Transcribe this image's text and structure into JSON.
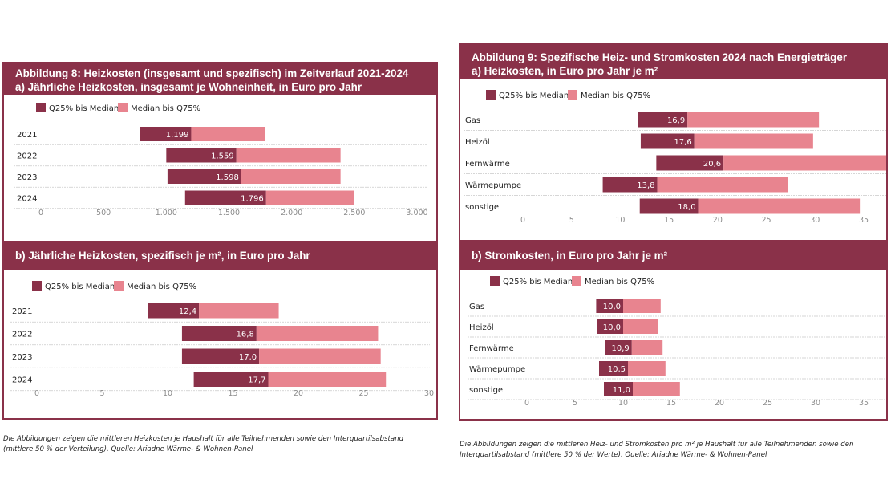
{
  "colors": {
    "dark": "#8a3149",
    "light": "#e8848f"
  },
  "legend": {
    "dark_label": "Q25% bis Median",
    "light_label": "Median bis Q75%"
  },
  "left": {
    "title_line1": "Abbildung 8: Heizkosten (insgesamt und spezifisch) im Zeitverlauf 2021-2024",
    "title_line2": "a) Jährliche Heizkosten, insgesamt je Wohneinheit, in Euro pro Jahr",
    "subtitle_b": "b) Jährliche Heizkosten, spezifisch je m², in Euro pro Jahr",
    "note_line1": "Die Abbildungen zeigen die mittleren Heizkosten je Haushalt für alle Teilnehmenden sowie den Interquartilsabstand",
    "note_line2": "(mittlere 50 % der Verteilung). Quelle: Ariadne Wärme- & Wohnen-Panel"
  },
  "right": {
    "title_line1": "Abbildung 9: Spezifische Heiz- und Stromkosten 2024 nach Energieträger",
    "title_line2": "a) Heizkosten, in Euro pro Jahr je m²",
    "subtitle_b": "b) Stromkosten, in Euro pro Jahr je m²",
    "note_line1": "Die Abbildungen zeigen die mittleren Heiz- und Stromkosten pro m² je Haushalt für alle Teilnehmenden sowie den",
    "note_line2": "Interquartilsabstand (mittlere 50 % der Werte). Quelle: Ariadne Wärme- & Wohnen-Panel"
  },
  "chart_data": [
    {
      "id": "8a",
      "type": "bar",
      "orientation": "horizontal",
      "stacked": "floating",
      "categories": [
        "2021",
        "2022",
        "2023",
        "2024"
      ],
      "q25": [
        790,
        1000,
        1010,
        1150
      ],
      "median": [
        1199,
        1559,
        1598,
        1796
      ],
      "q75": [
        1790,
        2390,
        2390,
        2500
      ],
      "labels": [
        "1.199",
        "1.559",
        "1.598",
        "1.796"
      ],
      "xlim": [
        0,
        3000
      ],
      "ticks": [
        0,
        500,
        1000,
        1500,
        2000,
        2500,
        3000
      ],
      "tick_labels": [
        "0",
        "500",
        "1.000",
        "1.500",
        "2.000",
        "2.500",
        "3.000"
      ]
    },
    {
      "id": "8b",
      "type": "bar",
      "orientation": "horizontal",
      "stacked": "floating",
      "categories": [
        "2021",
        "2022",
        "2023",
        "2024"
      ],
      "q25": [
        8.5,
        11.1,
        11.1,
        12.0
      ],
      "median": [
        12.4,
        16.8,
        17.0,
        17.7
      ],
      "q75": [
        18.5,
        26.1,
        26.3,
        26.7
      ],
      "labels": [
        "12,4",
        "16,8",
        "17,0",
        "17,7"
      ],
      "xlim": [
        0,
        30
      ],
      "ticks": [
        0,
        5,
        10,
        15,
        20,
        25,
        30
      ],
      "tick_labels": [
        "0",
        "5",
        "10",
        "15",
        "20",
        "25",
        "30"
      ]
    },
    {
      "id": "9a",
      "type": "bar",
      "orientation": "horizontal",
      "stacked": "floating",
      "categories": [
        "Gas",
        "Heizöl",
        "Fernwärme",
        "Wärmepumpe",
        "sonstige"
      ],
      "q25": [
        11.8,
        12.1,
        13.7,
        8.2,
        12.0
      ],
      "median": [
        16.9,
        17.6,
        20.6,
        13.8,
        18.0
      ],
      "q75": [
        30.4,
        29.8,
        39.5,
        27.2,
        34.6
      ],
      "labels": [
        "16,9",
        "17,6",
        "20,6",
        "13,8",
        "18,0"
      ],
      "xlim": [
        0,
        35
      ],
      "ticks": [
        0,
        5,
        10,
        15,
        20,
        25,
        30,
        35
      ],
      "tick_labels": [
        "0",
        "5",
        "10",
        "15",
        "20",
        "25",
        "30",
        "35"
      ]
    },
    {
      "id": "9b",
      "type": "bar",
      "orientation": "horizontal",
      "stacked": "floating",
      "categories": [
        "Gas",
        "Heizöl",
        "Fernwärme",
        "Wärmepumpe",
        "sonstige"
      ],
      "q25": [
        7.2,
        7.3,
        8.1,
        7.5,
        8.0
      ],
      "median": [
        10.0,
        10.0,
        10.9,
        10.5,
        11.0
      ],
      "q75": [
        13.9,
        13.6,
        14.1,
        14.4,
        15.9
      ],
      "labels": [
        "10,0",
        "10,0",
        "10,9",
        "10,5",
        "11,0"
      ],
      "xlim": [
        0,
        35
      ],
      "ticks": [
        0,
        5,
        10,
        15,
        20,
        25,
        30,
        35
      ],
      "tick_labels": [
        "0",
        "5",
        "10",
        "15",
        "20",
        "25",
        "30",
        "35"
      ]
    }
  ]
}
